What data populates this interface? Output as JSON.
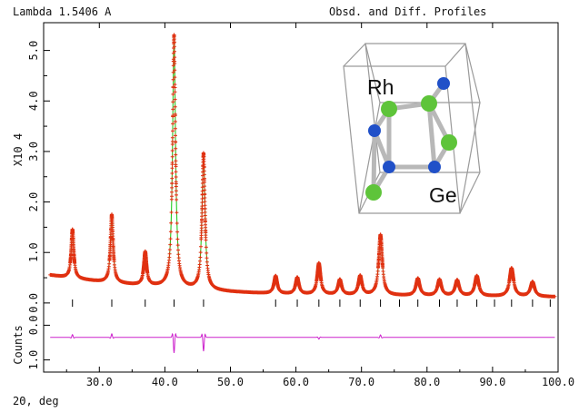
{
  "header": {
    "left": "Lambda 1.5406 A",
    "right": "Obsd. and Diff. Profiles"
  },
  "ylabel_main": "X10 4",
  "ylabel_diff": "Counts",
  "xlabel": "2Θ, deg",
  "inset": {
    "label_rh": "Rh",
    "label_ge": "Ge"
  },
  "colors": {
    "observed": "#e03010",
    "calculated": "#22cc22",
    "difference": "#cc22cc",
    "reflections": "#000000",
    "ge_atom": "#5ec43a",
    "rh_atom": "#2050c8"
  },
  "chart_data": {
    "type": "line",
    "xlim": [
      21.5,
      100.0
    ],
    "ylim_main": [
      -0.2,
      5.55
    ],
    "ylim_diff": [
      -1.35,
      0.35
    ],
    "x_ticks": [
      "30.0",
      "40.0",
      "50.0",
      "60.0",
      "70.0",
      "80.0",
      "90.0",
      "100.0"
    ],
    "y_ticks_main": [
      "0.0",
      "1.0",
      "2.0",
      "3.0",
      "4.0",
      "5.0"
    ],
    "y_ticks_diff": [
      "0.0",
      "1.0"
    ],
    "background": {
      "x": [
        22.5,
        25,
        30,
        35,
        40,
        45,
        50,
        55,
        60,
        70,
        80,
        90,
        100
      ],
      "y": [
        0.55,
        0.5,
        0.42,
        0.36,
        0.31,
        0.26,
        0.22,
        0.19,
        0.17,
        0.15,
        0.14,
        0.13,
        0.12
      ]
    },
    "peaks": [
      {
        "x": 25.9,
        "height": 0.97
      },
      {
        "x": 31.9,
        "height": 1.35
      },
      {
        "x": 37.0,
        "height": 0.66
      },
      {
        "x": 41.4,
        "height": 5.0
      },
      {
        "x": 45.9,
        "height": 2.7
      },
      {
        "x": 56.9,
        "height": 0.35
      },
      {
        "x": 60.2,
        "height": 0.33
      },
      {
        "x": 63.5,
        "height": 0.62
      },
      {
        "x": 66.7,
        "height": 0.3
      },
      {
        "x": 69.8,
        "height": 0.38
      },
      {
        "x": 72.9,
        "height": 1.2
      },
      {
        "x": 78.6,
        "height": 0.34
      },
      {
        "x": 81.9,
        "height": 0.32
      },
      {
        "x": 84.6,
        "height": 0.31
      },
      {
        "x": 87.6,
        "height": 0.4
      },
      {
        "x": 92.9,
        "height": 0.56
      },
      {
        "x": 96.1,
        "height": 0.29
      }
    ],
    "difference_baseline": -0.35,
    "difference_spikes": [
      {
        "x": 25.9,
        "amp": 0.08
      },
      {
        "x": 31.9,
        "amp": 0.1
      },
      {
        "x": 41.4,
        "amp": -0.45
      },
      {
        "x": 45.9,
        "amp": -0.4
      },
      {
        "x": 63.5,
        "amp": -0.05
      },
      {
        "x": 72.9,
        "amp": 0.07
      }
    ],
    "reflections": [
      25.9,
      31.9,
      37.0,
      41.4,
      45.9,
      56.9,
      60.2,
      63.5,
      66.7,
      69.8,
      72.9,
      75.8,
      78.6,
      81.9,
      84.6,
      87.6,
      90.3,
      92.9,
      96.1,
      98.8
    ]
  }
}
